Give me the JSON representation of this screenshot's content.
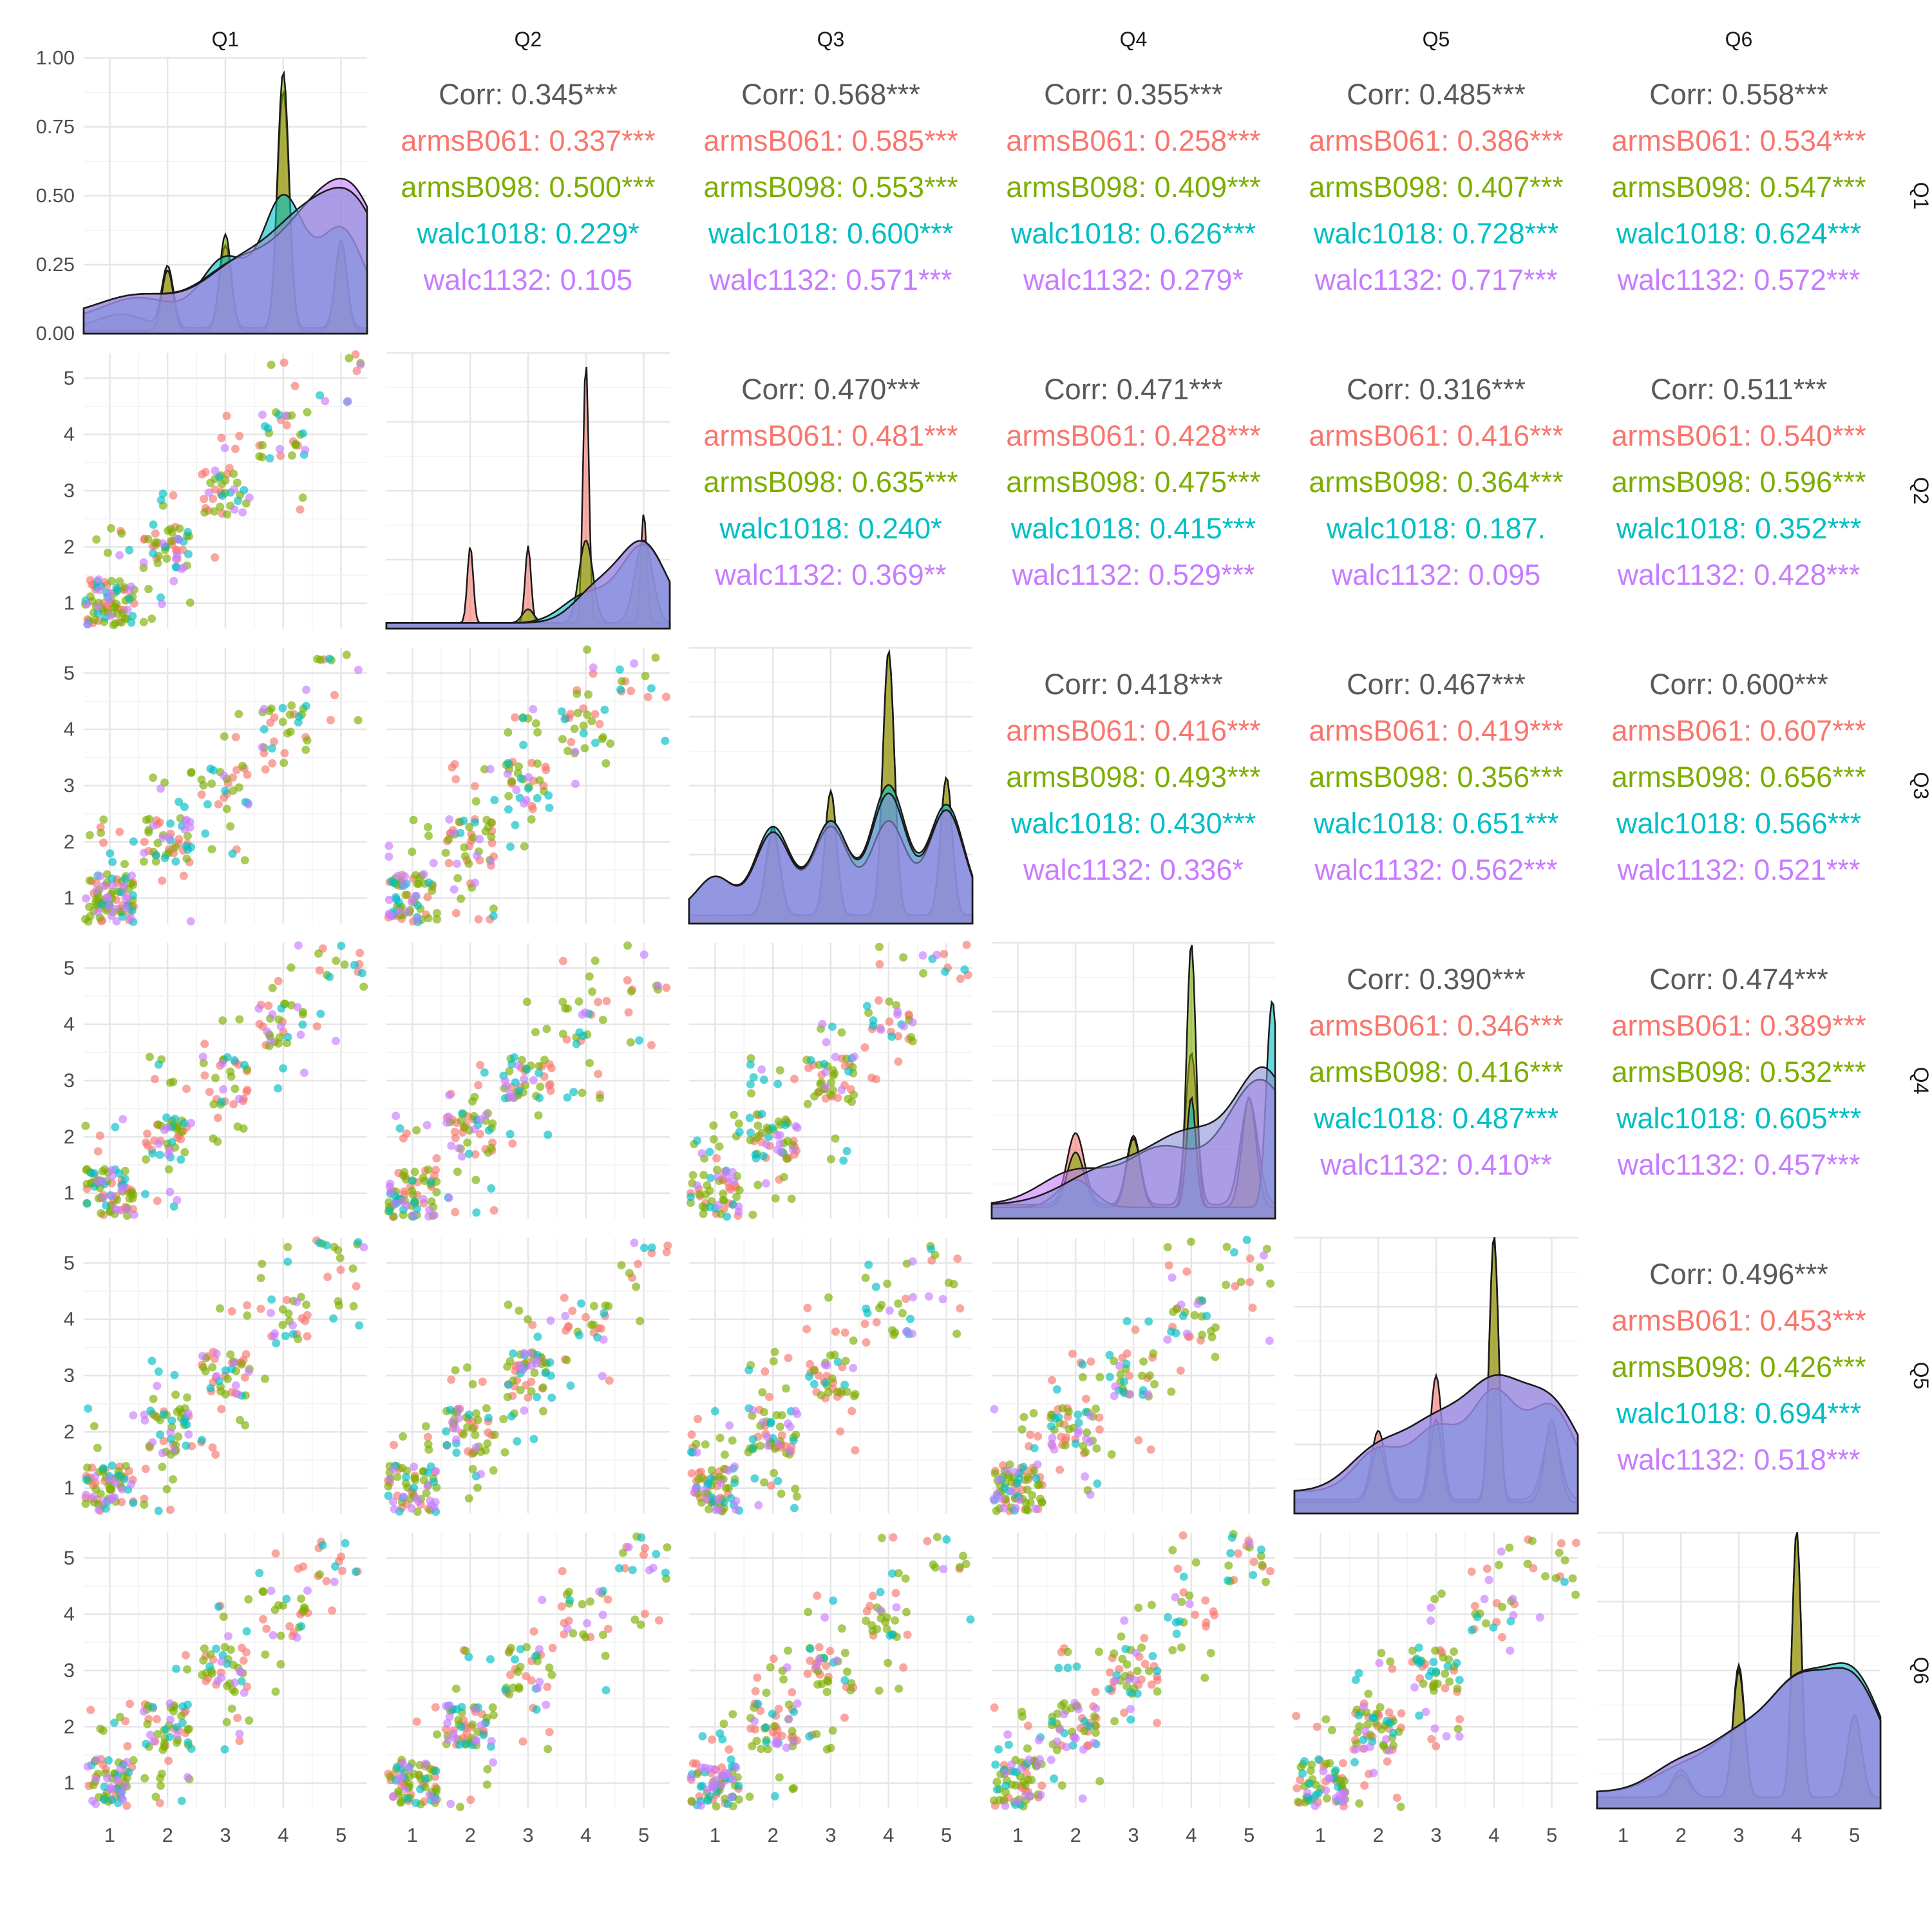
{
  "chart_data": {
    "type": "scatter",
    "title": "",
    "variables": [
      "Q1",
      "Q2",
      "Q3",
      "Q4",
      "Q5",
      "Q6"
    ],
    "groups": [
      {
        "name": "armsB061",
        "color": "#F8766D"
      },
      {
        "name": "armsB098",
        "color": "#7CAE00"
      },
      {
        "name": "walc1018",
        "color": "#00BFC4"
      },
      {
        "name": "walc1132",
        "color": "#C77CFF"
      }
    ],
    "overall_color": "#595959",
    "diag_density_ylim": [
      0,
      1
    ],
    "diag_density_ticks": [
      "0.00",
      "0.25",
      "0.50",
      "0.75",
      "1.00"
    ],
    "scatter_ticks": [
      "1",
      "2",
      "3",
      "4",
      "5"
    ],
    "axis_range": [
      0.55,
      5.45
    ],
    "grid": true,
    "correlations": [
      {
        "row": "Q1",
        "col": "Q2",
        "lines": [
          "Corr: 0.345***",
          "armsB061: 0.337***",
          "armsB098: 0.500***",
          "walc1018: 0.229*",
          "walc1132: 0.105"
        ]
      },
      {
        "row": "Q1",
        "col": "Q3",
        "lines": [
          "Corr: 0.568***",
          "armsB061: 0.585***",
          "armsB098: 0.553***",
          "walc1018: 0.600***",
          "walc1132: 0.571***"
        ]
      },
      {
        "row": "Q1",
        "col": "Q4",
        "lines": [
          "Corr: 0.355***",
          "armsB061: 0.258***",
          "armsB098: 0.409***",
          "walc1018: 0.626***",
          "walc1132: 0.279*"
        ]
      },
      {
        "row": "Q1",
        "col": "Q5",
        "lines": [
          "Corr: 0.485***",
          "armsB061: 0.386***",
          "armsB098: 0.407***",
          "walc1018: 0.728***",
          "walc1132: 0.717***"
        ]
      },
      {
        "row": "Q1",
        "col": "Q6",
        "lines": [
          "Corr: 0.558***",
          "armsB061: 0.534***",
          "armsB098: 0.547***",
          "walc1018: 0.624***",
          "walc1132: 0.572***"
        ]
      },
      {
        "row": "Q2",
        "col": "Q3",
        "lines": [
          "Corr: 0.470***",
          "armsB061: 0.481***",
          "armsB098: 0.635***",
          "walc1018: 0.240*",
          "walc1132: 0.369**"
        ]
      },
      {
        "row": "Q2",
        "col": "Q4",
        "lines": [
          "Corr: 0.471***",
          "armsB061: 0.428***",
          "armsB098: 0.475***",
          "walc1018: 0.415***",
          "walc1132: 0.529***"
        ]
      },
      {
        "row": "Q2",
        "col": "Q5",
        "lines": [
          "Corr: 0.316***",
          "armsB061: 0.416***",
          "armsB098: 0.364***",
          "walc1018: 0.187.",
          "walc1132: 0.095"
        ]
      },
      {
        "row": "Q2",
        "col": "Q6",
        "lines": [
          "Corr: 0.511***",
          "armsB061: 0.540***",
          "armsB098: 0.596***",
          "walc1018: 0.352***",
          "walc1132: 0.428***"
        ]
      },
      {
        "row": "Q3",
        "col": "Q4",
        "lines": [
          "Corr: 0.418***",
          "armsB061: 0.416***",
          "armsB098: 0.493***",
          "walc1018: 0.430***",
          "walc1132: 0.336*"
        ]
      },
      {
        "row": "Q3",
        "col": "Q5",
        "lines": [
          "Corr: 0.467***",
          "armsB061: 0.419***",
          "armsB098: 0.356***",
          "walc1018: 0.651***",
          "walc1132: 0.562***"
        ]
      },
      {
        "row": "Q3",
        "col": "Q6",
        "lines": [
          "Corr: 0.600***",
          "armsB061: 0.607***",
          "armsB098: 0.656***",
          "walc1018: 0.566***",
          "walc1132: 0.521***"
        ]
      },
      {
        "row": "Q4",
        "col": "Q5",
        "lines": [
          "Corr: 0.390***",
          "armsB061: 0.346***",
          "armsB098: 0.416***",
          "walc1018: 0.487***",
          "walc1132: 0.410**"
        ]
      },
      {
        "row": "Q4",
        "col": "Q6",
        "lines": [
          "Corr: 0.474***",
          "armsB061: 0.389***",
          "armsB098: 0.532***",
          "walc1018: 0.605***",
          "walc1132: 0.457***"
        ]
      },
      {
        "row": "Q5",
        "col": "Q6",
        "lines": [
          "Corr: 0.496***",
          "armsB061: 0.453***",
          "armsB098: 0.426***",
          "walc1018: 0.694***",
          "walc1132: 0.518***"
        ]
      }
    ],
    "diag_densities": [
      {
        "var": "Q1",
        "curves": [
          {
            "group": "armsB061",
            "peaks": [
              [
                1.2,
                0.05,
                0.4
              ],
              [
                2.0,
                0.22,
                0.1
              ],
              [
                3.0,
                0.3,
                0.1
              ],
              [
                4.0,
                0.86,
                0.1
              ],
              [
                5.0,
                0.3,
                0.1
              ]
            ],
            "floor": 0.02
          },
          {
            "group": "armsB098",
            "peaks": [
              [
                2.0,
                0.22,
                0.1
              ],
              [
                3.0,
                0.35,
                0.1
              ],
              [
                4.0,
                0.94,
                0.1
              ],
              [
                5.0,
                0.33,
                0.1
              ]
            ],
            "floor": 0.01
          },
          {
            "group": "walc1018",
            "peaks": [
              [
                1.5,
                0.08,
                0.6
              ],
              [
                3.0,
                0.22,
                0.4
              ],
              [
                4.0,
                0.43,
                0.35
              ],
              [
                5.0,
                0.33,
                0.4
              ]
            ],
            "floor": 0.05
          },
          {
            "group": "walc1132",
            "peaks": [
              [
                1.5,
                0.08,
                0.7
              ],
              [
                3.2,
                0.18,
                0.6
              ],
              [
                4.5,
                0.33,
                0.6
              ],
              [
                5.3,
                0.32,
                0.5
              ]
            ],
            "floor": 0.06
          },
          {
            "group": "Overall",
            "peaks": [
              [
                1.5,
                0.08,
                0.7
              ],
              [
                3.2,
                0.17,
                0.6
              ],
              [
                4.4,
                0.33,
                0.6
              ],
              [
                5.3,
                0.32,
                0.5
              ]
            ],
            "floor": 0.06
          }
        ]
      },
      {
        "var": "Q2",
        "curves": [
          {
            "group": "armsB061",
            "peaks": [
              [
                2.0,
                0.28,
                0.05
              ],
              [
                3.0,
                0.28,
                0.05
              ],
              [
                4.0,
                0.95,
                0.05
              ],
              [
                5.0,
                0.4,
                0.05
              ]
            ],
            "floor": 0.02
          },
          {
            "group": "armsB098",
            "peaks": [
              [
                3.0,
                0.05,
                0.1
              ],
              [
                4.0,
                0.3,
                0.12
              ],
              [
                5.0,
                0.3,
                0.15
              ]
            ],
            "floor": 0.02
          },
          {
            "group": "walc1018",
            "peaks": [
              [
                4.0,
                0.1,
                0.4
              ],
              [
                5.0,
                0.28,
                0.4
              ]
            ],
            "floor": 0.02
          },
          {
            "group": "walc1132",
            "peaks": [
              [
                4.2,
                0.12,
                0.4
              ],
              [
                5.0,
                0.28,
                0.4
              ]
            ],
            "floor": 0.02
          },
          {
            "group": "Overall",
            "peaks": [
              [
                4.2,
                0.12,
                0.4
              ],
              [
                5.0,
                0.28,
                0.4
              ]
            ],
            "floor": 0.02
          }
        ]
      },
      {
        "var": "Q3",
        "curves": [
          {
            "group": "armsB061",
            "peaks": [
              [
                2.0,
                0.32,
                0.12
              ],
              [
                3.0,
                0.45,
                0.1
              ],
              [
                4.0,
                0.95,
                0.1
              ],
              [
                5.0,
                0.5,
                0.1
              ]
            ],
            "floor": 0.03
          },
          {
            "group": "armsB098",
            "peaks": [
              [
                2.0,
                0.3,
                0.12
              ],
              [
                3.0,
                0.45,
                0.1
              ],
              [
                4.0,
                0.96,
                0.1
              ],
              [
                5.0,
                0.5,
                0.1
              ]
            ],
            "floor": 0.03
          },
          {
            "group": "walc1018",
            "peaks": [
              [
                1.0,
                0.12,
                0.3
              ],
              [
                2.0,
                0.3,
                0.3
              ],
              [
                3.0,
                0.32,
                0.3
              ],
              [
                4.0,
                0.45,
                0.3
              ],
              [
                5.0,
                0.38,
                0.3
              ]
            ],
            "floor": 0.05
          },
          {
            "group": "walc1132",
            "peaks": [
              [
                1.0,
                0.12,
                0.3
              ],
              [
                2.0,
                0.28,
                0.3
              ],
              [
                3.0,
                0.3,
                0.3
              ],
              [
                4.0,
                0.32,
                0.3
              ],
              [
                5.0,
                0.36,
                0.3
              ]
            ],
            "floor": 0.05
          },
          {
            "group": "Overall",
            "peaks": [
              [
                1.0,
                0.12,
                0.3
              ],
              [
                2.0,
                0.28,
                0.3
              ],
              [
                3.0,
                0.32,
                0.3
              ],
              [
                4.0,
                0.42,
                0.3
              ],
              [
                5.0,
                0.36,
                0.3
              ]
            ],
            "floor": 0.05
          }
        ]
      },
      {
        "var": "Q4",
        "curves": [
          {
            "group": "armsB061",
            "peaks": [
              [
                2.0,
                0.26,
                0.15
              ],
              [
                3.0,
                0.25,
                0.12
              ],
              [
                4.0,
                0.55,
                0.1
              ],
              [
                5.0,
                0.38,
                0.15
              ]
            ],
            "floor": 0.05
          },
          {
            "group": "armsB098",
            "peaks": [
              [
                2.0,
                0.2,
                0.15
              ],
              [
                3.0,
                0.25,
                0.12
              ],
              [
                4.0,
                0.96,
                0.08
              ],
              [
                5.0,
                0.4,
                0.12
              ]
            ],
            "floor": 0.04
          },
          {
            "group": "walc1018",
            "peaks": [
              [
                2.0,
                0.1,
                0.3
              ],
              [
                4.0,
                0.4,
                0.08
              ],
              [
                5.4,
                0.75,
                0.1
              ]
            ],
            "floor": 0.04
          },
          {
            "group": "walc1132",
            "peaks": [
              [
                2.0,
                0.12,
                0.6
              ],
              [
                3.5,
                0.2,
                0.6
              ],
              [
                5.2,
                0.45,
                0.6
              ]
            ],
            "floor": 0.05
          },
          {
            "group": "Overall",
            "peaks": [
              [
                2.5,
                0.12,
                0.7
              ],
              [
                4.0,
                0.25,
                0.7
              ],
              [
                5.3,
                0.45,
                0.5
              ]
            ],
            "floor": 0.05
          }
        ]
      },
      {
        "var": "Q5",
        "curves": [
          {
            "group": "armsB061",
            "peaks": [
              [
                2.0,
                0.25,
                0.12
              ],
              [
                3.0,
                0.45,
                0.1
              ],
              [
                4.0,
                0.96,
                0.08
              ],
              [
                5.0,
                0.25,
                0.15
              ]
            ],
            "floor": 0.05
          },
          {
            "group": "armsB098",
            "peaks": [
              [
                2.0,
                0.2,
                0.12
              ],
              [
                3.0,
                0.3,
                0.1
              ],
              [
                4.0,
                0.96,
                0.08
              ],
              [
                5.0,
                0.3,
                0.12
              ]
            ],
            "floor": 0.04
          },
          {
            "group": "walc1018",
            "peaks": [
              [
                2.0,
                0.15,
                0.4
              ],
              [
                3.0,
                0.22,
                0.4
              ],
              [
                4.0,
                0.35,
                0.4
              ],
              [
                5.0,
                0.3,
                0.4
              ]
            ],
            "floor": 0.08
          },
          {
            "group": "walc1132",
            "peaks": [
              [
                2.0,
                0.15,
                0.5
              ],
              [
                3.0,
                0.22,
                0.5
              ],
              [
                4.0,
                0.35,
                0.5
              ],
              [
                5.0,
                0.3,
                0.5
              ]
            ],
            "floor": 0.08
          },
          {
            "group": "Overall",
            "peaks": [
              [
                2.0,
                0.15,
                0.5
              ],
              [
                3.0,
                0.22,
                0.5
              ],
              [
                4.0,
                0.35,
                0.5
              ],
              [
                5.0,
                0.3,
                0.5
              ]
            ],
            "floor": 0.08
          }
        ]
      },
      {
        "var": "Q6",
        "curves": [
          {
            "group": "armsB061",
            "peaks": [
              [
                2.0,
                0.1,
                0.15
              ],
              [
                3.0,
                0.48,
                0.1
              ],
              [
                4.0,
                0.96,
                0.08
              ],
              [
                5.0,
                0.3,
                0.12
              ]
            ],
            "floor": 0.04
          },
          {
            "group": "armsB098",
            "peaks": [
              [
                2.0,
                0.08,
                0.15
              ],
              [
                3.0,
                0.46,
                0.1
              ],
              [
                4.0,
                0.97,
                0.08
              ],
              [
                5.0,
                0.3,
                0.12
              ]
            ],
            "floor": 0.04
          },
          {
            "group": "walc1018",
            "peaks": [
              [
                2.0,
                0.08,
                0.5
              ],
              [
                3.0,
                0.18,
                0.5
              ],
              [
                4.0,
                0.35,
                0.5
              ],
              [
                5.0,
                0.4,
                0.5
              ]
            ],
            "floor": 0.06
          },
          {
            "group": "walc1132",
            "peaks": [
              [
                2.0,
                0.1,
                0.5
              ],
              [
                3.0,
                0.18,
                0.5
              ],
              [
                4.0,
                0.35,
                0.5
              ],
              [
                5.0,
                0.38,
                0.5
              ]
            ],
            "floor": 0.06
          },
          {
            "group": "Overall",
            "peaks": [
              [
                2.0,
                0.1,
                0.5
              ],
              [
                3.0,
                0.18,
                0.5
              ],
              [
                4.0,
                0.35,
                0.5
              ],
              [
                5.0,
                0.38,
                0.5
              ]
            ],
            "floor": 0.06
          }
        ]
      }
    ]
  }
}
